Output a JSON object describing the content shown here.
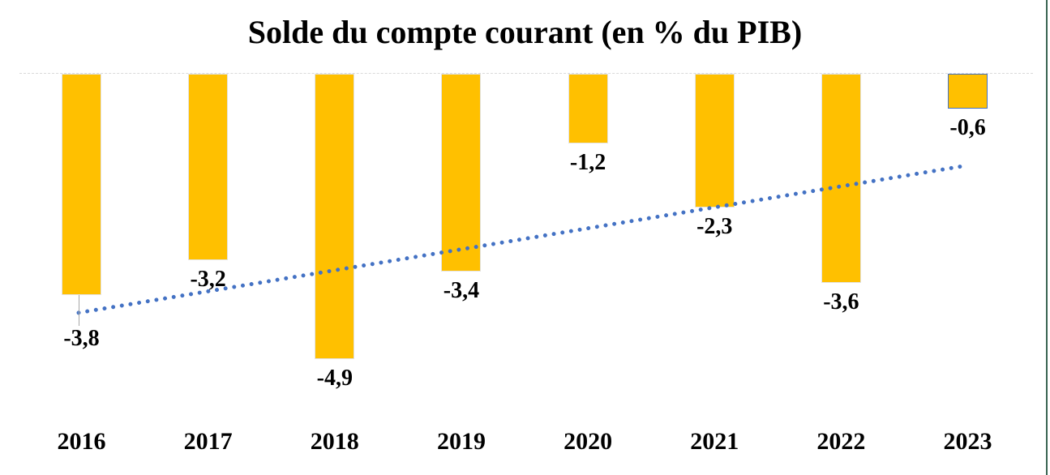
{
  "page": {
    "title": "Solde du compte courant (en % du PIB)"
  },
  "colors": {
    "bar_fill": "#FFC000",
    "bar_border": "#E3E3E3",
    "selected_bar_border": "#4472C4",
    "trendline": "#4472C4",
    "gridline": "#D9D9D9",
    "leader_line": "#A6A6A6",
    "page_edge_line": "#3A6552",
    "text": "#000000"
  },
  "chart_data": {
    "type": "bar",
    "title": "Solde du compte courant (en % du PIB)",
    "categories": [
      "2016",
      "2017",
      "2018",
      "2019",
      "2020",
      "2021",
      "2022",
      "2023"
    ],
    "values": [
      -3.8,
      -3.2,
      -4.9,
      -3.4,
      -1.2,
      -2.3,
      -3.6,
      -0.6
    ],
    "data_labels": [
      "-3,8",
      "-3,2",
      "-4,9",
      "-3,4",
      "-1,2",
      "-2,3",
      "-3,6",
      "-0,6"
    ],
    "xlabel": "",
    "ylabel": "",
    "ylim": [
      -5.5,
      0
    ],
    "zero_line_visible": true,
    "y_axis_ticks_visible": false,
    "legend": "none",
    "bar_color": "#FFC000",
    "selected_category": "2023",
    "moved_label": {
      "category": "2016",
      "leader_line": true
    },
    "trendline": {
      "type": "linear",
      "style": "dotted",
      "color": "#4472C4",
      "start_value": -4.12,
      "end_value": -1.6
    }
  }
}
